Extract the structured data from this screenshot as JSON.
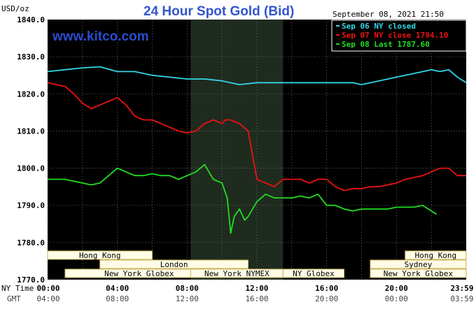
{
  "header": {
    "title": "24 Hour Spot Gold (Bid)",
    "unit": "USD/oz",
    "datetime": "September 08, 2021 21:50",
    "watermark": "www.kitco.com"
  },
  "legend": [
    {
      "label": "Sep 06 NY closed",
      "color": "#33d6e6"
    },
    {
      "label": "Sep 07 NY close 1794.10",
      "color": "#ee1111"
    },
    {
      "label": "Sep 08 Last 1787.60",
      "color": "#22dd22"
    }
  ],
  "time_labels": {
    "row1_title": "NY Time",
    "row2_title": "GMT",
    "ny": [
      "00:00",
      "04:00",
      "08:00",
      "12:00",
      "16:00",
      "20:00",
      "23:59"
    ],
    "gmt": [
      "04:00",
      "08:00",
      "12:00",
      "16:00",
      "20:00",
      "00:00",
      "03:59"
    ]
  },
  "sessions": [
    {
      "label": "Hong Kong",
      "start": 0,
      "end": 6
    },
    {
      "label": "London",
      "start": 3,
      "end": 11.5
    },
    {
      "label": "New York Globex",
      "start": 1,
      "end": 9.5
    },
    {
      "label": "New York NYMEX",
      "start": 8.2,
      "end": 13.5
    },
    {
      "label": "NY Globex",
      "start": 13.5,
      "end": 17
    },
    {
      "label": "Hong Kong",
      "start": 20.5,
      "end": 24
    },
    {
      "label": "Sydney",
      "start": 18.5,
      "end": 24
    },
    {
      "label": "New York Globex",
      "start": 18.5,
      "end": 24
    }
  ],
  "chart_data": {
    "type": "line",
    "title": "24 Hour Spot Gold (Bid)",
    "ylabel": "USD/oz",
    "ylim": [
      1770,
      1840
    ],
    "yticks": [
      "1840.0",
      "1830.0",
      "1820.0",
      "1810.0",
      "1800.0",
      "1790.0",
      "1780.0",
      "1770.0"
    ],
    "xlim": [
      0,
      24
    ],
    "shaded_hours": [
      8.2,
      13.5
    ],
    "grid": true,
    "series": [
      {
        "name": "Sep 06 NY closed",
        "color": "#33d6e6",
        "x": [
          0,
          1,
          2,
          3,
          4,
          5,
          6,
          7,
          8,
          9,
          10,
          11,
          12,
          13,
          14,
          15,
          16,
          17,
          17.5,
          18,
          19,
          20,
          21,
          22,
          22.5,
          23,
          23.5,
          24
        ],
        "y": [
          1826,
          1826.5,
          1827,
          1827.3,
          1826,
          1826,
          1825,
          1824.5,
          1824,
          1824,
          1823.5,
          1822.5,
          1823,
          1823,
          1823,
          1823,
          1823,
          1823,
          1823,
          1822.5,
          1823.5,
          1824.5,
          1825.5,
          1826.5,
          1826,
          1826.5,
          1824.5,
          1823
        ]
      },
      {
        "name": "Sep 07 NY close 1794.10",
        "color": "#ee1111",
        "x": [
          0,
          1,
          1.5,
          2,
          2.5,
          3,
          3.5,
          4,
          4.5,
          5,
          5.5,
          6,
          6.5,
          7,
          7.5,
          8,
          8.5,
          9,
          9.5,
          10,
          10.2,
          10.5,
          11,
          11.5,
          12,
          12.5,
          13,
          13.5,
          14,
          14.5,
          15,
          15.5,
          16,
          16.5,
          17,
          17.5,
          18,
          18.5,
          19,
          19.5,
          20,
          20.5,
          21,
          21.5,
          22,
          22.5,
          23,
          23.5,
          24
        ],
        "y": [
          1823,
          1822,
          1820,
          1817.5,
          1816,
          1817,
          1818,
          1819,
          1817,
          1814,
          1813,
          1813,
          1812,
          1811,
          1810,
          1809.5,
          1810,
          1812,
          1813,
          1812,
          1813,
          1813,
          1812,
          1810,
          1797,
          1796,
          1795,
          1797,
          1797,
          1797,
          1796,
          1797,
          1797,
          1795,
          1794,
          1794.5,
          1794.5,
          1795,
          1795,
          1795.5,
          1796,
          1797,
          1797.5,
          1798,
          1799,
          1800,
          1800,
          1798,
          1798
        ]
      },
      {
        "name": "Sep 08 Last 1787.60",
        "color": "#22dd22",
        "x": [
          0,
          0.5,
          1,
          1.5,
          2,
          2.5,
          3,
          3.5,
          4,
          4.5,
          5,
          5.5,
          6,
          6.5,
          7,
          7.5,
          8,
          8.5,
          9,
          9.5,
          10,
          10.3,
          10.5,
          10.7,
          11,
          11.3,
          11.5,
          12,
          12.5,
          13,
          13.5,
          14,
          14.5,
          15,
          15.5,
          16,
          16.5,
          17,
          17.5,
          18,
          18.5,
          19,
          19.5,
          20,
          20.5,
          21,
          21.5,
          22,
          22.3
        ],
        "y": [
          1797,
          1797,
          1797,
          1796.5,
          1796,
          1795.5,
          1796,
          1798,
          1800,
          1799,
          1798,
          1798,
          1798.5,
          1798,
          1798,
          1797,
          1798,
          1799,
          1801,
          1797,
          1796,
          1792,
          1782.5,
          1787,
          1789,
          1786,
          1787,
          1791,
          1793,
          1792,
          1792,
          1792,
          1792.5,
          1792,
          1793,
          1790,
          1790,
          1789,
          1788.5,
          1789,
          1789,
          1789,
          1789,
          1789.5,
          1789.5,
          1789.5,
          1790,
          1788.5,
          1787.6
        ]
      }
    ]
  }
}
